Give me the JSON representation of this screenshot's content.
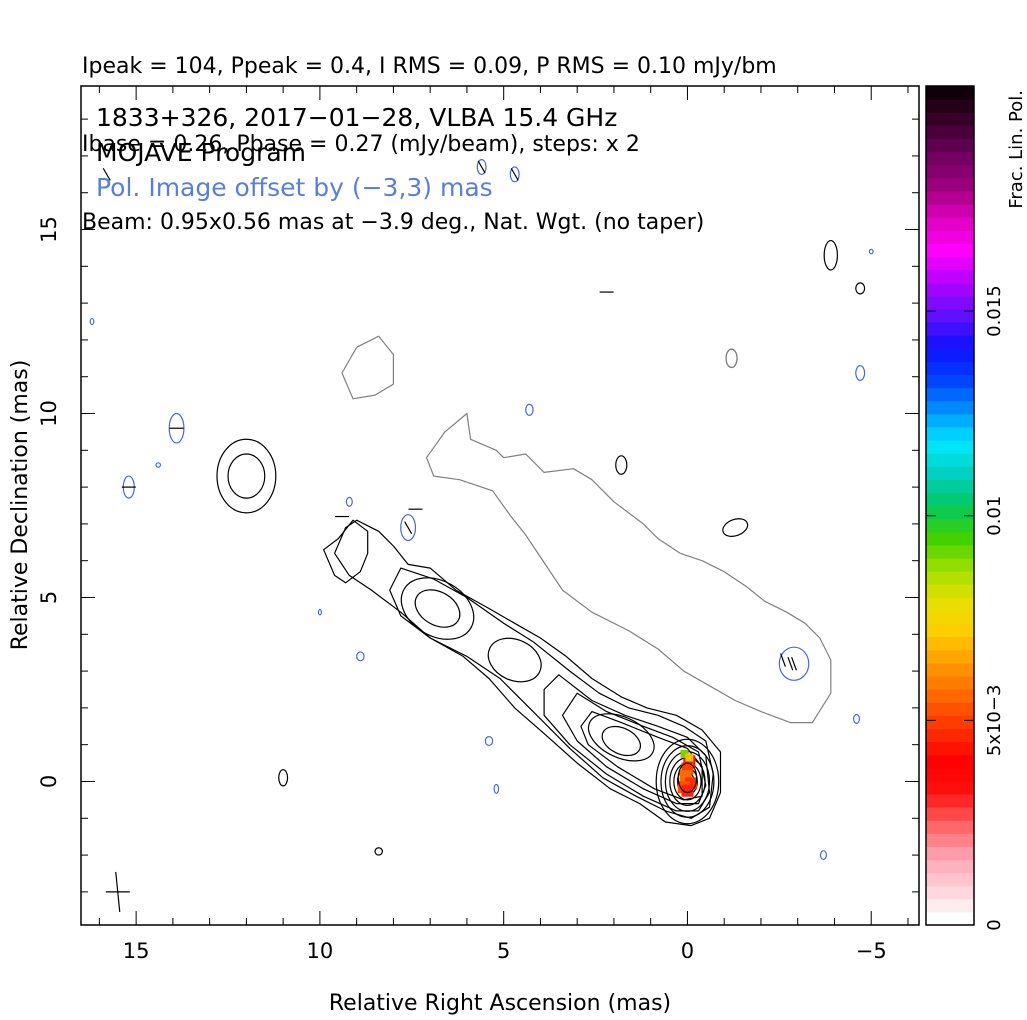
{
  "header": {
    "line1": "Ipeak = 104, Ppeak = 0.4, I RMS = 0.09, P RMS = 0.10 mJy/bm",
    "line2": "Ibase = 0.26, Pbase = 0.27 (mJy/beam), steps: x 2",
    "line3": "Beam: 0.95x0.56 mas at −3.9 deg., Nat. Wgt. (no taper)"
  },
  "annotations": {
    "source_line": "1833+326, 2017−01−28, VLBA 15.4 GHz",
    "program_line": "MOJAVE Program",
    "pol_offset_line": "Pol. Image offset by (−3,3) mas"
  },
  "colors": {
    "total_intensity_contour": "#000000",
    "offset_contour": "#808080",
    "pol_contour": "#4169e1",
    "pol_text": "#5a7fd6"
  },
  "chart_data": {
    "type": "contour",
    "title": "1833+326, 2017−01−28, VLBA 15.4 GHz",
    "xlabel": "Relative Right Ascension (mas)",
    "ylabel": "Relative Declination (mas)",
    "xlim": [
      16.5,
      -6.3
    ],
    "ylim": [
      -3.9,
      18.9
    ],
    "x_ticks": [
      15,
      10,
      5,
      0,
      -5
    ],
    "y_ticks": [
      0,
      5,
      10,
      15
    ],
    "x_tick_labels": [
      "15",
      "10",
      "5",
      "0",
      "−5"
    ],
    "y_tick_labels": [
      "0",
      "5",
      "10",
      "15"
    ],
    "colorbar": {
      "label": "Frac. Lin. Pol.",
      "range": [
        0,
        0.0205
      ],
      "ticks": [
        0,
        0.005,
        0.01,
        0.015
      ],
      "tick_labels": [
        "0",
        "5x10−3",
        "0.01",
        "0.015"
      ]
    },
    "core_position": [
      0,
      0
    ],
    "jet_components": [
      {
        "ra": 0.0,
        "dec": 0.0,
        "desc": "core"
      },
      {
        "ra": 1.9,
        "dec": 1.2
      },
      {
        "ra": 4.8,
        "dec": 3.4
      },
      {
        "ra": 6.8,
        "dec": 4.7
      },
      {
        "ra": 12.0,
        "dec": 8.3
      }
    ],
    "peaks": {
      "Ipeak": 104,
      "Ppeak": 0.4,
      "I_RMS": 0.09,
      "P_RMS": 0.1,
      "Ibase": 0.26,
      "Pbase": 0.27,
      "steps": 2
    },
    "beam": {
      "major": 0.95,
      "minor": 0.56,
      "pa_deg": -3.9
    },
    "grid": false
  }
}
